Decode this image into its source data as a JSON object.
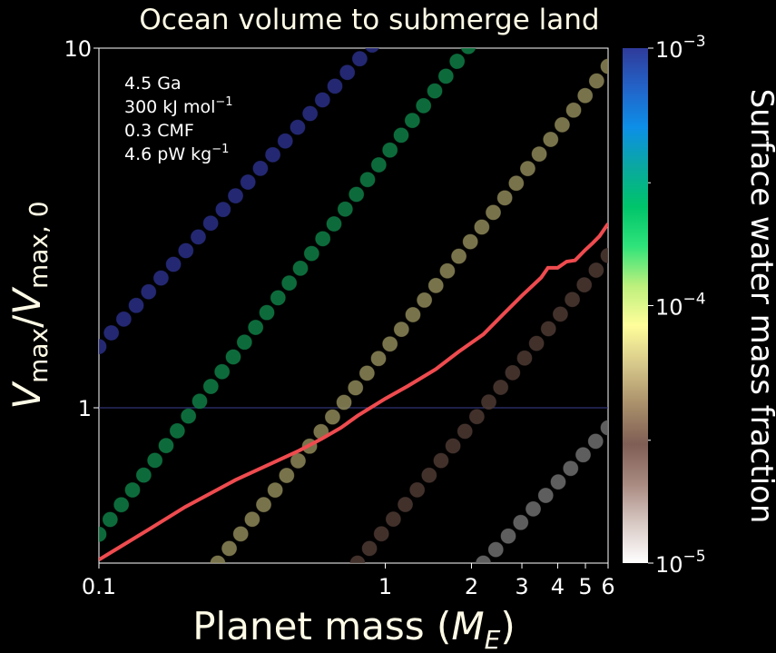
{
  "chart_data": {
    "type": "scatter",
    "title": "Ocean volume to submerge land",
    "xlabel_main": "Planet mass (",
    "xlabel_var": "M",
    "xlabel_sub": "E",
    "xlabel_close": ")",
    "ylabel_var1": "V",
    "ylabel_sub1": "max",
    "ylabel_slash": "/",
    "ylabel_var2": "V",
    "ylabel_sub2": "max, 0",
    "xscale": "log",
    "yscale": "log",
    "xlim": [
      0.1,
      6
    ],
    "ylim": [
      0.37,
      10
    ],
    "xticks": [
      {
        "value": 0.1,
        "label": "0.1"
      },
      {
        "value": 1,
        "label": "1"
      },
      {
        "value": 2,
        "label": "2"
      },
      {
        "value": 3,
        "label": "3"
      },
      {
        "value": 4,
        "label": "4"
      },
      {
        "value": 5,
        "label": "5"
      },
      {
        "value": 6,
        "label": "6"
      }
    ],
    "yticks": [
      {
        "value": 1,
        "label": "1"
      },
      {
        "value": 10,
        "label": "10"
      }
    ],
    "hline": {
      "y": 1,
      "color": "#3a3f8f"
    },
    "annotations": [
      {
        "text": "4.5 Ga",
        "sup": ""
      },
      {
        "text": "300 kJ mol",
        "sup": "−1"
      },
      {
        "text": "0.3 CMF",
        "sup": ""
      },
      {
        "text": "4.6 pW kg",
        "sup": "−1"
      }
    ],
    "series": [
      {
        "wmf": 0.001,
        "color": "#2a2f86",
        "points": [
          [
            0.1,
            1.48
          ],
          [
            0.9,
            10.2
          ]
        ]
      },
      {
        "wmf": 0.0003,
        "color": "#0f7e45",
        "points": [
          [
            0.1,
            0.445
          ],
          [
            1.95,
            10.1
          ]
        ]
      },
      {
        "wmf": 0.0001,
        "color": "#8d8758",
        "points": [
          [
            0.26,
            0.37
          ],
          [
            6,
            8.9
          ]
        ]
      },
      {
        "wmf": 3e-05,
        "color": "#4e3a33",
        "points": [
          [
            0.8,
            0.37
          ],
          [
            6,
            2.65
          ]
        ]
      },
      {
        "wmf": 1e-05,
        "color": "#6f6f6f",
        "points": [
          [
            2.2,
            0.37
          ],
          [
            6,
            0.88
          ]
        ]
      }
    ],
    "model_line": {
      "color": "#ef4b4f",
      "points": [
        [
          0.1,
          0.378
        ],
        [
          0.15,
          0.46
        ],
        [
          0.2,
          0.53
        ],
        [
          0.3,
          0.63
        ],
        [
          0.4,
          0.7
        ],
        [
          0.5,
          0.76
        ],
        [
          0.6,
          0.82
        ],
        [
          0.7,
          0.88
        ],
        [
          0.8,
          0.95
        ],
        [
          1.0,
          1.06
        ],
        [
          1.2,
          1.15
        ],
        [
          1.5,
          1.28
        ],
        [
          1.8,
          1.43
        ],
        [
          2.2,
          1.6
        ],
        [
          2.6,
          1.83
        ],
        [
          3.0,
          2.05
        ],
        [
          3.5,
          2.3
        ],
        [
          3.7,
          2.45
        ],
        [
          4.0,
          2.45
        ],
        [
          4.3,
          2.55
        ],
        [
          4.6,
          2.57
        ],
        [
          5.0,
          2.75
        ],
        [
          5.3,
          2.87
        ],
        [
          5.6,
          3.0
        ],
        [
          6.0,
          3.25
        ]
      ]
    },
    "colorbar": {
      "label": "Surface water mass fraction",
      "scale": "log",
      "range": [
        1e-05,
        0.001
      ],
      "tick_labels": [
        {
          "value": 0.001,
          "base": "10",
          "exp": "−3"
        },
        {
          "value": 0.0001,
          "base": "10",
          "exp": "−4"
        },
        {
          "value": 1e-05,
          "base": "10",
          "exp": "−5"
        }
      ],
      "minor_ticks": [
        0.0003,
        3e-05
      ],
      "colors": [
        "#ffffff",
        "#d8c9c4",
        "#a98a80",
        "#7f5e55",
        "#a98f6a",
        "#d6c78a",
        "#fffe9b",
        "#bdf07d",
        "#2fe37a",
        "#00c46a",
        "#0aa8a0",
        "#0d8fe8",
        "#2363c8",
        "#2f3b9a"
      ]
    }
  }
}
